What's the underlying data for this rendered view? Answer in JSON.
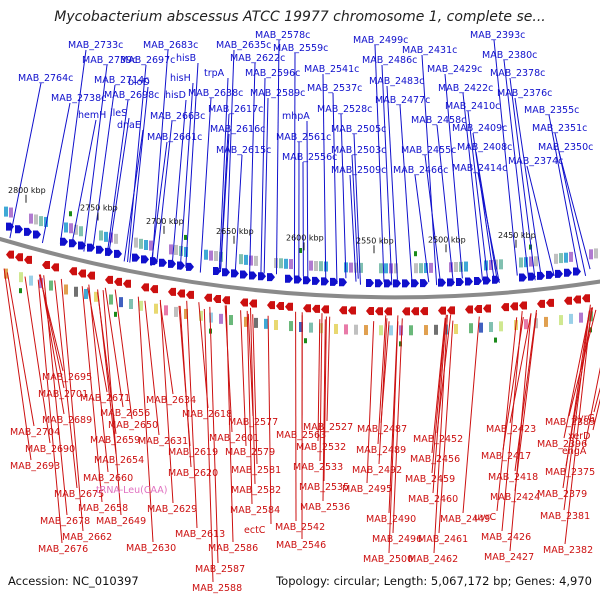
{
  "title": "Mycobacterium abscessus ATCC 19977 chromosome 1, complete se...",
  "accession": "Accession: NC_010397",
  "topology": "Topology: circular; Length: 5,067,172 bp; Genes: 4,970",
  "kbp_labels": [
    "2800 kbp",
    "2750 kbp",
    "2700 kbp",
    "2650 kbp",
    "2600 kbp",
    "2550 kbp",
    "2500 kbp",
    "2450 kbp"
  ],
  "colors": {
    "forward": "#1010cc",
    "reverse": "#cc1010",
    "rna": "#e070c0",
    "backbone": "#888888"
  },
  "top_labels": [
    "MAB_2733c",
    "MAB_2739c",
    "MAB_2764c",
    "MAB_2714c",
    "MAB_2738c",
    "MAB_2697c",
    "MAB_2698c",
    "hisB",
    "bioD",
    "hemH",
    "MAB_2683c",
    "hisH",
    "hisD",
    "ileS",
    "dnaE",
    "trpA",
    "MAB_2663c",
    "MAB_2661c",
    "MAB_2635c",
    "MAB_2622c",
    "MAB_2638c",
    "MAB_2617c",
    "MAB_2616c",
    "MAB_2615c",
    "MAB_2578c",
    "MAB_2559c",
    "MAB_2596c",
    "MAB_2589c",
    "mhpA",
    "MAB_2561c",
    "MAB_2556c",
    "MAB_2541c",
    "MAB_2537c",
    "MAB_2528c",
    "MAB_2499c",
    "MAB_2486c",
    "MAB_2483c",
    "MAB_2477c",
    "MAB_2505c",
    "MAB_2503c",
    "MAB_2509c",
    "MAB_2458c",
    "MAB_2455c",
    "MAB_2466c",
    "MAB_2431c",
    "MAB_2429c",
    "MAB_2422c",
    "MAB_2410c",
    "MAB_2409c",
    "MAB_2408c",
    "MAB_2414c",
    "MAB_2393c",
    "MAB_2380c",
    "MAB_2378c",
    "MAB_2376c",
    "MAB_2355c",
    "MAB_2351c",
    "MAB_2350c",
    "MAB_2374c"
  ],
  "bottom_labels": [
    "MAB_2695",
    "MAB_2701",
    "MAB_2704",
    "MAB_2689",
    "MAB_2671",
    "MAB_2690",
    "MAB_2656",
    "MAB_2693",
    "MAB_2659",
    "MAB_2650",
    "MAB_2654",
    "MAB_2634",
    "MAB_2660",
    "MAB_2675",
    "MAB_2631",
    "MAB_2618",
    "MAB_2658",
    "MAB_2619",
    "MAB_2678",
    "MAB_2649",
    "MAB_2620",
    "MAB_2662",
    "MAB_2629",
    "MAB_2676",
    "MAB_2613",
    "MAB_2630",
    "MAB_2577",
    "MAB_2601",
    "MAB_2579",
    "MAB_2581",
    "MAB_2582",
    "MAB_2584",
    "ectC",
    "MAB_2586",
    "MAB_2587",
    "MAB_2588",
    "MAB_2563",
    "MAB_2527",
    "MAB_2532",
    "MAB_2533",
    "MAB_2535",
    "MAB_2536",
    "MAB_2542",
    "MAB_2546",
    "MAB_2487",
    "MAB_2489",
    "MAB_2492",
    "MAB_2495",
    "MAB_2490",
    "MAB_2496",
    "MAB_2500",
    "MAB_2452",
    "MAB_2456",
    "MAB_2459",
    "MAB_2460",
    "MAB_2449",
    "MAB_2461",
    "MAB_2462",
    "MAB_2423",
    "MAB_2417",
    "MAB_2418",
    "MAB_2424",
    "uvrC",
    "MAB_2426",
    "MAB_2427",
    "MAB_2389",
    "pyrG",
    "MAB_2396",
    "xerD",
    "engA",
    "MAB_2375",
    "MAB_2379",
    "MAB_2381",
    "MAB_2382"
  ],
  "rna_label": "tRNA-Leu(CAA)"
}
